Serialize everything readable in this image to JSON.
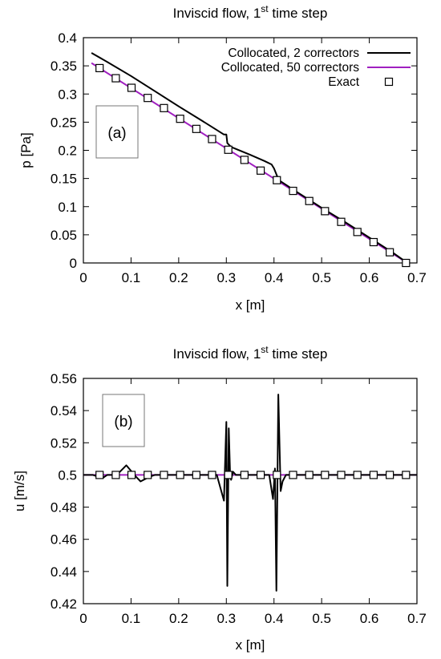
{
  "chart_data": [
    {
      "type": "line",
      "panel_label": "(a)",
      "title": {
        "main": "Inviscid flow, 1",
        "sup": "st",
        "rest": " time step"
      },
      "xlabel": "x [m]",
      "ylabel": "p [Pa]",
      "xlim": [
        0,
        0.7
      ],
      "ylim": [
        0,
        0.4
      ],
      "xticks": [
        "0",
        "0.1",
        "0.2",
        "0.3",
        "0.4",
        "0.5",
        "0.6",
        "0.7"
      ],
      "yticks": [
        "0",
        "0.05",
        "0.1",
        "0.15",
        "0.2",
        "0.25",
        "0.3",
        "0.35",
        "0.4"
      ],
      "legend_position": "top-right",
      "series": [
        {
          "name": "Collocated, 2 correctors",
          "style": "line",
          "color": "#000000",
          "x": [
            0.017,
            0.05,
            0.1,
            0.15,
            0.2,
            0.25,
            0.28,
            0.295,
            0.3,
            0.302,
            0.31,
            0.35,
            0.38,
            0.395,
            0.4,
            0.41,
            0.45,
            0.5,
            0.55,
            0.6,
            0.65,
            0.68
          ],
          "y": [
            0.373,
            0.357,
            0.332,
            0.305,
            0.278,
            0.252,
            0.236,
            0.228,
            0.228,
            0.213,
            0.206,
            0.192,
            0.181,
            0.175,
            0.168,
            0.147,
            0.125,
            0.098,
            0.072,
            0.045,
            0.018,
            0.0
          ]
        },
        {
          "name": "Collocated, 50 correctors",
          "style": "line",
          "color": "#a020c0",
          "x": [
            0.017,
            0.68
          ],
          "y": [
            0.355,
            0.0
          ]
        },
        {
          "name": "Exact",
          "style": "markers",
          "color": "#000000",
          "x": [
            0.034,
            0.068,
            0.101,
            0.135,
            0.169,
            0.203,
            0.237,
            0.27,
            0.304,
            0.338,
            0.372,
            0.406,
            0.44,
            0.474,
            0.507,
            0.541,
            0.575,
            0.609,
            0.643,
            0.677
          ],
          "y": [
            0.346,
            0.328,
            0.311,
            0.293,
            0.275,
            0.256,
            0.238,
            0.22,
            0.201,
            0.183,
            0.164,
            0.147,
            0.128,
            0.11,
            0.092,
            0.073,
            0.055,
            0.037,
            0.019,
            0.0
          ]
        }
      ]
    },
    {
      "type": "line",
      "panel_label": "(b)",
      "title": {
        "main": "Inviscid flow, 1",
        "sup": "st",
        "rest": " time step"
      },
      "xlabel": "x [m]",
      "ylabel": "u [m/s]",
      "xlim": [
        0,
        0.7
      ],
      "ylim": [
        0.42,
        0.56
      ],
      "xticks": [
        "0",
        "0.1",
        "0.2",
        "0.3",
        "0.4",
        "0.5",
        "0.6",
        "0.7"
      ],
      "yticks": [
        "0.42",
        "0.44",
        "0.46",
        "0.48",
        "0.5",
        "0.52",
        "0.54",
        "0.56"
      ],
      "series": [
        {
          "name": "Collocated, 2 correctors",
          "style": "line",
          "color": "#000000",
          "x": [
            0.0,
            0.02,
            0.04,
            0.05,
            0.07,
            0.09,
            0.11,
            0.12,
            0.14,
            0.15,
            0.2,
            0.25,
            0.28,
            0.295,
            0.3,
            0.302,
            0.305,
            0.308,
            0.31,
            0.314,
            0.32,
            0.35,
            0.39,
            0.398,
            0.402,
            0.405,
            0.409,
            0.414,
            0.418,
            0.425,
            0.43,
            0.5,
            0.6,
            0.7
          ],
          "y": [
            0.5,
            0.5,
            0.498,
            0.5,
            0.5,
            0.506,
            0.499,
            0.496,
            0.499,
            0.5,
            0.5,
            0.5,
            0.5,
            0.484,
            0.533,
            0.431,
            0.529,
            0.5,
            0.497,
            0.502,
            0.5,
            0.5,
            0.5,
            0.485,
            0.504,
            0.428,
            0.55,
            0.49,
            0.496,
            0.5,
            0.5,
            0.5,
            0.5,
            0.5
          ]
        },
        {
          "name": "Collocated, 50 correctors",
          "style": "line",
          "color": "#a020c0",
          "x": [
            0.0,
            0.7
          ],
          "y": [
            0.5,
            0.5
          ]
        },
        {
          "name": "Exact",
          "style": "markers",
          "color": "#000000",
          "x": [
            0.034,
            0.068,
            0.101,
            0.135,
            0.169,
            0.203,
            0.237,
            0.27,
            0.304,
            0.338,
            0.372,
            0.406,
            0.44,
            0.474,
            0.507,
            0.541,
            0.575,
            0.609,
            0.643,
            0.677
          ],
          "y": [
            0.5,
            0.5,
            0.5,
            0.5,
            0.5,
            0.5,
            0.5,
            0.5,
            0.5,
            0.5,
            0.5,
            0.5,
            0.5,
            0.5,
            0.5,
            0.5,
            0.5,
            0.5,
            0.5,
            0.5
          ]
        }
      ]
    }
  ]
}
